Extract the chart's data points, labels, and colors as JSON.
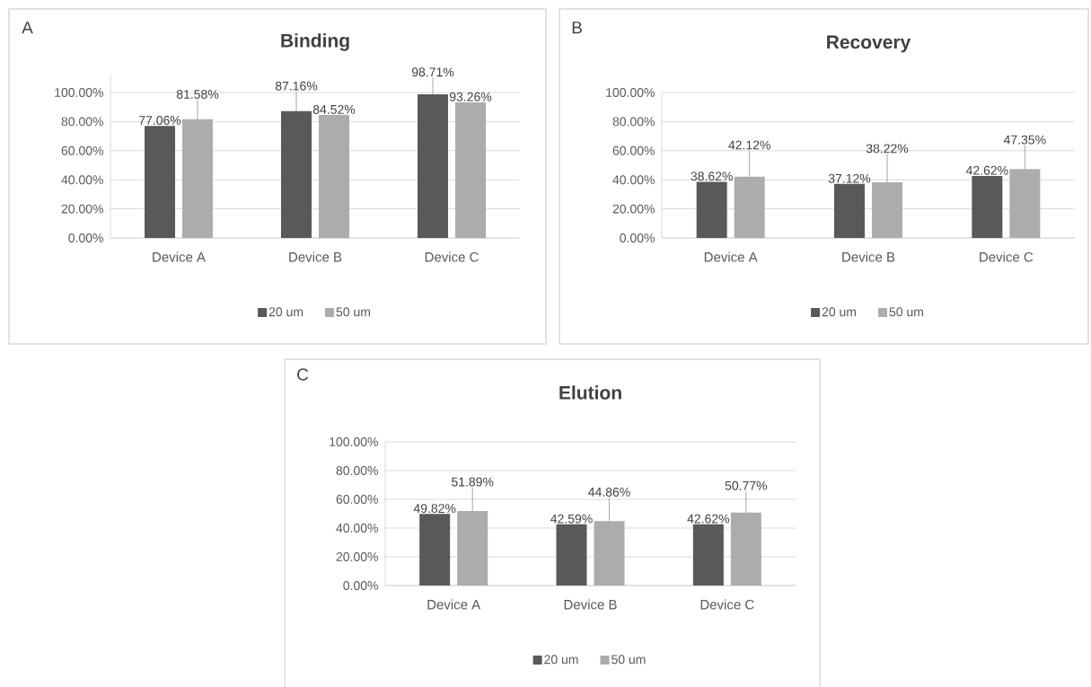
{
  "chart_data": [
    {
      "type": "bar",
      "title": "Binding",
      "annotations": [
        "A"
      ],
      "categories": [
        "Device A",
        "Device B",
        "Device C"
      ],
      "series": [
        {
          "name": "20 um",
          "color": "#595959",
          "values": [
            77.06,
            87.16,
            98.71
          ],
          "errors": [
            null,
            [
              87.16,
              100.7
            ],
            [
              98.71,
              110.2
            ]
          ],
          "value_labels": [
            "77.06%",
            "87.16%",
            "98.71%"
          ]
        },
        {
          "name": "50 um",
          "color": "#aeabab",
          "values": [
            81.58,
            84.52,
            93.26
          ],
          "errors": [
            [
              81.58,
              95.0
            ],
            null,
            null
          ],
          "value_labels": [
            "81.58%",
            "84.52%",
            "93.26%"
          ]
        }
      ],
      "ylim": [
        0,
        112
      ],
      "yticks": [
        {
          "value": 0,
          "label": "0.00%"
        },
        {
          "value": 20,
          "label": "20.00%"
        },
        {
          "value": 40,
          "label": "40.00%"
        },
        {
          "value": 60,
          "label": "60.00%"
        },
        {
          "value": 80,
          "label": "80.00%"
        },
        {
          "value": 100,
          "label": "100.00%"
        }
      ],
      "grid": "y",
      "legend": "bottom"
    },
    {
      "type": "bar",
      "title": "Recovery",
      "annotations": [
        "B"
      ],
      "categories": [
        "Device A",
        "Device B",
        "Device C"
      ],
      "series": [
        {
          "name": "20 um",
          "color": "#595959",
          "values": [
            38.62,
            37.12,
            42.62
          ],
          "value_labels": [
            "38.62%",
            "37.12%",
            "42.62%"
          ]
        },
        {
          "name": "50 um",
          "color": "#aeabab",
          "values": [
            42.12,
            38.22,
            47.35
          ],
          "errors": [
            [
              42.12,
              60.1
            ],
            [
              38.22,
              57.7
            ],
            [
              47.35,
              63.7
            ]
          ],
          "value_labels": [
            "42.12%",
            "38.22%",
            "47.35%"
          ]
        }
      ],
      "ylim": [
        0,
        100
      ],
      "yticks": [
        {
          "value": 0,
          "label": "0.00%"
        },
        {
          "value": 20,
          "label": "20.00%"
        },
        {
          "value": 40,
          "label": "40.00%"
        },
        {
          "value": 60,
          "label": "60.00%"
        },
        {
          "value": 80,
          "label": "80.00%"
        },
        {
          "value": 100,
          "label": "100.00%"
        }
      ],
      "grid": "y",
      "legend": "bottom"
    },
    {
      "type": "bar",
      "title": "Elution",
      "annotations": [
        "C"
      ],
      "categories": [
        "Device A",
        "Device B",
        "Device C"
      ],
      "series": [
        {
          "name": "20 um",
          "color": "#595959",
          "values": [
            49.82,
            42.59,
            42.62
          ],
          "value_labels": [
            "49.82%",
            "42.59%",
            "42.62%"
          ]
        },
        {
          "name": "50 um",
          "color": "#aeabab",
          "values": [
            51.89,
            44.86,
            50.77
          ],
          "errors": [
            [
              51.89,
              68.3
            ],
            [
              44.86,
              61.2
            ],
            [
              50.77,
              65.7
            ]
          ],
          "value_labels": [
            "51.89%",
            "44.86%",
            "50.77%"
          ]
        }
      ],
      "ylim": [
        0,
        100
      ],
      "yticks": [
        {
          "value": 0,
          "label": "0.00%"
        },
        {
          "value": 20,
          "label": "20.00%"
        },
        {
          "value": 40,
          "label": "40.00%"
        },
        {
          "value": 60,
          "label": "60.00%"
        },
        {
          "value": 80,
          "label": "80.00%"
        },
        {
          "value": 100,
          "label": "100.00%"
        }
      ],
      "grid": "y",
      "legend": "bottom"
    }
  ]
}
